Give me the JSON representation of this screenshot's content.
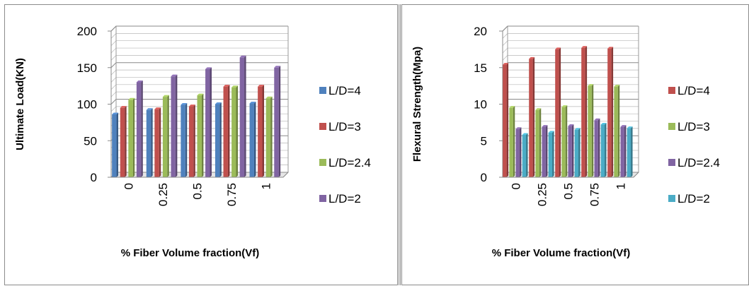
{
  "chart_data": [
    {
      "type": "bar",
      "ylabel": "Ultimate Load(KN)",
      "xlabel": "% Fiber Volume fraction(Vf)",
      "categories": [
        "0",
        "0.25",
        "0.5",
        "0.75",
        "1"
      ],
      "ylim": [
        0,
        200
      ],
      "yticks": [
        "0",
        "50",
        "100",
        "150",
        "200"
      ],
      "grid": true,
      "legend_position": "right",
      "series": [
        {
          "name": "L/D=4",
          "color": "#4f81bd",
          "values": [
            86,
            92,
            99,
            100,
            101
          ]
        },
        {
          "name": "L/D=3",
          "color": "#c0504d",
          "values": [
            95,
            93,
            97,
            124,
            124
          ]
        },
        {
          "name": "L/D=2.4",
          "color": "#9bbb59",
          "values": [
            106,
            110,
            112,
            123,
            108
          ]
        },
        {
          "name": "L/D=2",
          "color": "#8064a2",
          "values": [
            130,
            138,
            148,
            164,
            150
          ]
        }
      ]
    },
    {
      "type": "bar",
      "ylabel": "Flexural Strength(Mpa)",
      "xlabel": "% Fiber Volume fraction(Vf)",
      "categories": [
        "0",
        "0.25",
        "0.5",
        "0.75",
        "1"
      ],
      "ylim": [
        0,
        20
      ],
      "yticks": [
        "0",
        "5",
        "10",
        "15",
        "20"
      ],
      "grid": true,
      "legend_position": "right",
      "series": [
        {
          "name": "L/D=4",
          "color": "#c0504d",
          "values": [
            15.4,
            16.2,
            17.5,
            17.7,
            17.6
          ]
        },
        {
          "name": "L/D=3",
          "color": "#9bbb59",
          "values": [
            9.5,
            9.2,
            9.6,
            12.5,
            12.4
          ]
        },
        {
          "name": "L/D=2.4",
          "color": "#8064a2",
          "values": [
            6.6,
            6.9,
            7.0,
            7.8,
            6.9
          ]
        },
        {
          "name": "L/D=2",
          "color": "#4bacc6",
          "values": [
            5.8,
            6.1,
            6.5,
            7.2,
            6.7
          ]
        }
      ]
    }
  ]
}
